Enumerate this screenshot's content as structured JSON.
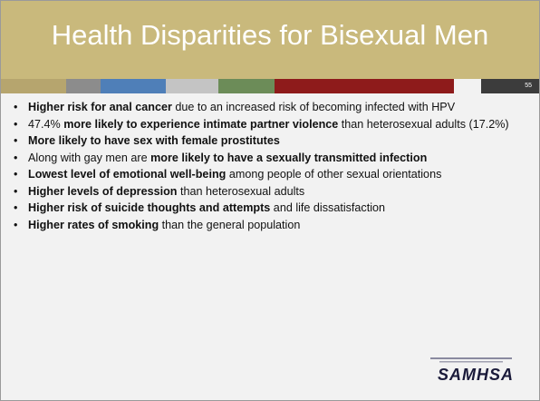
{
  "header": {
    "title": "Health Disparities for Bisexual Men",
    "page_number": "55"
  },
  "bullets": [
    [
      {
        "text": "Higher risk for anal cancer",
        "bold": true
      },
      {
        "text": " due to an increased risk of becoming infected with HPV",
        "bold": false
      }
    ],
    [
      {
        "text": "47.4% ",
        "bold": false
      },
      {
        "text": "more likely to experience intimate partner violence",
        "bold": true
      },
      {
        "text": " than heterosexual adults (17.2%)",
        "bold": false
      }
    ],
    [
      {
        "text": "More likely to have sex with female prostitutes",
        "bold": true
      }
    ],
    [
      {
        "text": "Along with gay men are ",
        "bold": false
      },
      {
        "text": "more likely to have a sexually transmitted infection",
        "bold": true
      }
    ],
    [
      {
        "text": "Lowest level of emotional well-being",
        "bold": true
      },
      {
        "text": " among people of other sexual orientations",
        "bold": false
      }
    ],
    [
      {
        "text": "Higher levels of depression",
        "bold": true
      },
      {
        "text": " than heterosexual adults",
        "bold": false
      }
    ],
    [
      {
        "text": "Higher risk of suicide thoughts and attempts",
        "bold": true
      },
      {
        "text": " and life dissatisfaction",
        "bold": false
      }
    ],
    [
      {
        "text": "Higher rates of smoking",
        "bold": true
      },
      {
        "text": " than the general population",
        "bold": false
      }
    ]
  ],
  "logo": {
    "text": "SAMHSA"
  }
}
